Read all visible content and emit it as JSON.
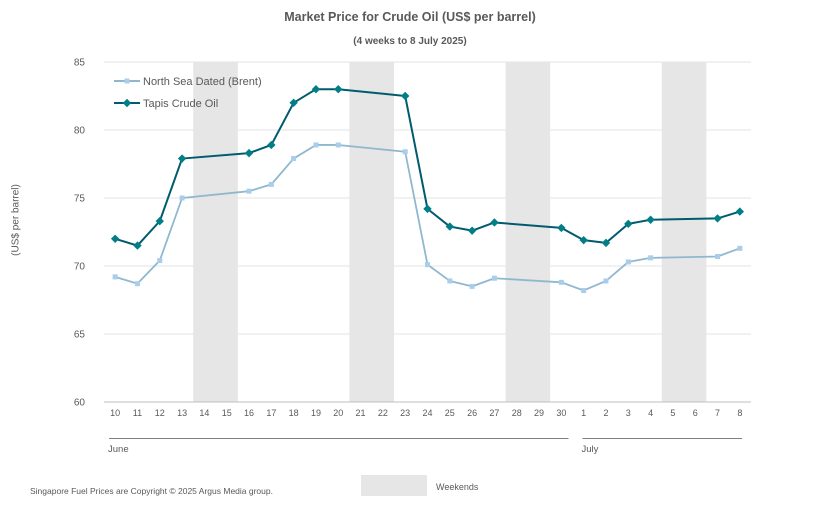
{
  "chart_data": {
    "type": "line",
    "title": "Market Price for Crude  Oil (US$ per barrel)",
    "subtitle": "(4 weeks to 8 July 2025)",
    "ylabel": "(US$ per barrel)",
    "ylim": [
      60,
      85
    ],
    "yticks": [
      60,
      65,
      70,
      75,
      80,
      85
    ],
    "grid": true,
    "legend_position": "top-left",
    "x": [
      "10",
      "11",
      "12",
      "13",
      "14",
      "15",
      "16",
      "17",
      "18",
      "19",
      "20",
      "21",
      "22",
      "23",
      "24",
      "25",
      "26",
      "27",
      "28",
      "29",
      "30",
      "1",
      "2",
      "3",
      "4",
      "5",
      "6",
      "7",
      "8"
    ],
    "months": [
      {
        "label": "June",
        "start": "10",
        "end": "30"
      },
      {
        "label": "July",
        "start": "1",
        "end": "8"
      }
    ],
    "weekends": [
      [
        "14",
        "15"
      ],
      [
        "21",
        "22"
      ],
      [
        "28",
        "29"
      ],
      [
        "5",
        "6"
      ]
    ],
    "series": [
      {
        "name": "North Sea Dated (Brent)",
        "color": "#8fb8cf",
        "marker_color": "#a9cdea",
        "marker": "square",
        "values": [
          69.2,
          68.7,
          70.4,
          75.0,
          null,
          null,
          75.5,
          76.0,
          77.9,
          78.9,
          78.9,
          null,
          null,
          78.4,
          70.1,
          68.9,
          68.5,
          69.1,
          null,
          null,
          68.8,
          68.2,
          68.9,
          70.3,
          70.6,
          null,
          null,
          70.7,
          71.3
        ]
      },
      {
        "name": "Tapis Crude Oil",
        "color": "#015b6f",
        "marker_color": "#007f86",
        "marker": "diamond",
        "values": [
          72.0,
          71.5,
          73.3,
          77.9,
          null,
          null,
          78.3,
          78.9,
          82.0,
          83.0,
          83.0,
          null,
          null,
          82.5,
          74.2,
          72.9,
          72.6,
          73.2,
          null,
          null,
          72.8,
          71.9,
          71.7,
          73.1,
          73.4,
          null,
          null,
          73.5,
          74.0
        ]
      }
    ]
  },
  "footer": "Singapore Fuel Prices are Copyright © 2025 Argus Media group.",
  "weekend_legend_label": "Weekends",
  "colors": {
    "weekend": "#e6e6e6",
    "grid": "#e3e3e3",
    "axis": "#bfbfbf",
    "text": "#595959"
  }
}
